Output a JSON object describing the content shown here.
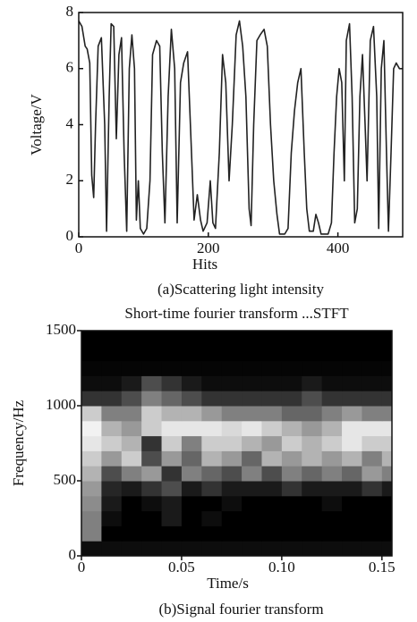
{
  "chart_data": [
    {
      "type": "line",
      "x_label": "Hits",
      "y_label": "Voltage/V",
      "caption": "(a)Scattering light intensity",
      "color": "#222222",
      "xlim": [
        0,
        500
      ],
      "ylim": [
        0,
        8
      ],
      "xticks": [
        0,
        200,
        400
      ],
      "yticks": [
        0,
        2,
        4,
        6,
        8
      ],
      "x": [
        0,
        5,
        10,
        13,
        17,
        20,
        23,
        26,
        30,
        35,
        40,
        43,
        47,
        50,
        54,
        58,
        62,
        66,
        70,
        74,
        78,
        82,
        86,
        89,
        92,
        95,
        100,
        105,
        110,
        114,
        120,
        125,
        129,
        133,
        138,
        143,
        148,
        152,
        157,
        162,
        168,
        174,
        178,
        183,
        188,
        192,
        198,
        203,
        207,
        211,
        217,
        222,
        227,
        232,
        237,
        243,
        248,
        253,
        258,
        263,
        266,
        270,
        275,
        280,
        286,
        291,
        296,
        301,
        306,
        310,
        318,
        323,
        328,
        333,
        338,
        343,
        348,
        352,
        356,
        362,
        366,
        370,
        374,
        385,
        390,
        394,
        398,
        402,
        406,
        410,
        413,
        418,
        422,
        426,
        430,
        434,
        438,
        442,
        445,
        450,
        455,
        460,
        463,
        467,
        471,
        475,
        478,
        482,
        486,
        490,
        495,
        500
      ],
      "values": [
        7.7,
        7.5,
        6.8,
        6.7,
        6.2,
        2.2,
        1.4,
        4,
        6.8,
        7.1,
        4,
        0.2,
        5,
        7.6,
        7.5,
        3.5,
        6.5,
        7.1,
        3,
        0.2,
        6,
        7.2,
        6,
        0.6,
        2,
        0.3,
        0.1,
        0.3,
        2,
        6.5,
        7,
        6.8,
        3,
        0.5,
        5,
        7.4,
        6,
        0.5,
        5.5,
        6.2,
        6.6,
        3,
        0.6,
        1.5,
        0.6,
        0.2,
        0.5,
        2,
        0.5,
        0.3,
        3,
        6.5,
        5.5,
        2,
        4,
        7.2,
        7.7,
        6.8,
        5,
        1,
        0.4,
        4,
        7,
        7.2,
        7.4,
        6.8,
        4,
        2,
        0.8,
        0.1,
        0.1,
        0.3,
        3,
        4.5,
        5.5,
        6,
        3,
        1,
        0.2,
        0.2,
        0.8,
        0.5,
        0.1,
        0.1,
        0.5,
        3,
        5,
        6,
        5.5,
        2,
        7,
        7.6,
        5,
        0.5,
        1,
        5,
        6.5,
        4,
        2,
        7,
        7.5,
        5,
        0.3,
        6,
        7,
        3,
        0.2,
        3,
        6,
        6.2,
        6,
        6
      ]
    },
    {
      "type": "heatmap",
      "title": "Short-time fourier transform ...STFT",
      "x_label": "Time/s",
      "y_label": "Frequency/Hz",
      "caption": "(b)Signal fourier transform",
      "xlim": [
        0,
        0.155
      ],
      "ylim": [
        0,
        1500
      ],
      "xticks": [
        0,
        0.05,
        {
          "value": 0.1,
          "label": "0.10"
        },
        0.15
      ],
      "yticks": [
        0,
        500,
        1000,
        1500
      ],
      "x_edges": [
        0,
        0.01,
        0.02,
        0.03,
        0.04,
        0.05,
        0.06,
        0.07,
        0.08,
        0.09,
        0.1,
        0.11,
        0.12,
        0.13,
        0.14,
        0.15,
        0.155
      ],
      "y_edges": [
        0,
        100,
        200,
        300,
        400,
        500,
        600,
        700,
        800,
        900,
        1000,
        1100,
        1200,
        1300,
        1400,
        1500
      ],
      "z": [
        [
          0.05,
          0.05,
          0.05,
          0.05,
          0.05,
          0.05,
          0.05,
          0.05,
          0.05,
          0.05,
          0.05,
          0.05,
          0.05,
          0.05,
          0.05,
          0.05
        ],
        [
          0.5,
          0,
          0,
          0,
          0,
          0,
          0,
          0,
          0,
          0,
          0,
          0,
          0,
          0,
          0,
          0
        ],
        [
          0.5,
          0.05,
          0,
          0,
          0.1,
          0,
          0.05,
          0,
          0,
          0,
          0,
          0,
          0,
          0,
          0,
          0
        ],
        [
          0.55,
          0.1,
          0,
          0.05,
          0.1,
          0,
          0,
          0.05,
          0,
          0,
          0,
          0,
          0.05,
          0,
          0,
          0
        ],
        [
          0.6,
          0.15,
          0.1,
          0.2,
          0.3,
          0.1,
          0.2,
          0.1,
          0.1,
          0.1,
          0.2,
          0.1,
          0.1,
          0.1,
          0.2,
          0.1
        ],
        [
          0.7,
          0.3,
          0.5,
          0.6,
          0.2,
          0.5,
          0.4,
          0.3,
          0.5,
          0.3,
          0.5,
          0.4,
          0.5,
          0.4,
          0.6,
          0.5
        ],
        [
          0.8,
          0.6,
          0.8,
          0.3,
          0.6,
          0.4,
          0.7,
          0.6,
          0.4,
          0.7,
          0.6,
          0.7,
          0.6,
          0.7,
          0.5,
          0.7
        ],
        [
          0.9,
          0.8,
          0.7,
          0.2,
          0.8,
          0.5,
          0.8,
          0.8,
          0.7,
          0.6,
          0.8,
          0.7,
          0.8,
          0.9,
          0.8,
          0.8
        ],
        [
          0.95,
          0.7,
          0.6,
          0.8,
          0.9,
          0.9,
          0.9,
          0.85,
          0.9,
          0.8,
          0.7,
          0.6,
          0.7,
          0.9,
          0.9,
          0.9
        ],
        [
          0.8,
          0.5,
          0.5,
          0.8,
          0.7,
          0.7,
          0.6,
          0.5,
          0.5,
          0.5,
          0.4,
          0.4,
          0.5,
          0.6,
          0.5,
          0.5
        ],
        [
          0.2,
          0.2,
          0.3,
          0.5,
          0.4,
          0.3,
          0.2,
          0.2,
          0.2,
          0.2,
          0.2,
          0.3,
          0.2,
          0.2,
          0.2,
          0.2
        ],
        [
          0.05,
          0.05,
          0.1,
          0.3,
          0.2,
          0.1,
          0.05,
          0.05,
          0.05,
          0.05,
          0.05,
          0.1,
          0.05,
          0.05,
          0.05,
          0.05
        ],
        [
          0.02,
          0.02,
          0.02,
          0.02,
          0.02,
          0.02,
          0.02,
          0.02,
          0.02,
          0.02,
          0.02,
          0.02,
          0.02,
          0.02,
          0.02,
          0.02
        ],
        [
          0,
          0,
          0,
          0,
          0,
          0,
          0,
          0,
          0,
          0,
          0,
          0,
          0,
          0,
          0,
          0
        ],
        [
          0,
          0,
          0,
          0,
          0,
          0,
          0,
          0,
          0,
          0,
          0,
          0,
          0,
          0,
          0,
          0
        ]
      ]
    }
  ]
}
